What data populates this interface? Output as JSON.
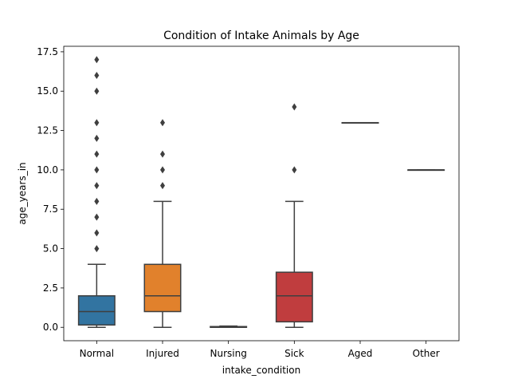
{
  "chart_data": {
    "type": "box",
    "title": "Condition of Intake Animals by Age",
    "xlabel": "intake_condition",
    "ylabel": "age_years_in",
    "ylim": [
      -0.85,
      17.85
    ],
    "yticks": [
      0.0,
      2.5,
      5.0,
      7.5,
      10.0,
      12.5,
      15.0,
      17.5
    ],
    "ytick_labels": [
      "0.0",
      "2.5",
      "5.0",
      "7.5",
      "10.0",
      "12.5",
      "15.0",
      "17.5"
    ],
    "grid": false,
    "categories": [
      "Normal",
      "Injured",
      "Nursing",
      "Sick",
      "Aged",
      "Other"
    ],
    "boxes": [
      {
        "category": "Normal",
        "color": "#3274a1",
        "whisker_low": 0.0,
        "q1": 0.15,
        "median": 1.0,
        "q3": 2.0,
        "whisker_high": 4.0,
        "outliers": [
          5.0,
          6.0,
          7.0,
          8.0,
          9.0,
          10.0,
          11.0,
          12.0,
          13.0,
          15.0,
          16.0,
          17.0
        ]
      },
      {
        "category": "Injured",
        "color": "#e1812c",
        "whisker_low": 0.0,
        "q1": 1.0,
        "median": 2.0,
        "q3": 4.0,
        "whisker_high": 8.0,
        "outliers": [
          9.0,
          10.0,
          11.0,
          13.0
        ]
      },
      {
        "category": "Nursing",
        "color": "#3a923a",
        "whisker_low": 0.0,
        "q1": 0.0,
        "median": 0.0,
        "q3": 0.05,
        "whisker_high": 0.08,
        "outliers": []
      },
      {
        "category": "Sick",
        "color": "#c03d3e",
        "whisker_low": 0.0,
        "q1": 0.35,
        "median": 2.0,
        "q3": 3.5,
        "whisker_high": 8.0,
        "outliers": [
          10.0,
          14.0
        ]
      },
      {
        "category": "Aged",
        "color": "#9372b2",
        "whisker_low": 13.0,
        "q1": 13.0,
        "median": 13.0,
        "q3": 13.0,
        "whisker_high": 13.0,
        "outliers": []
      },
      {
        "category": "Other",
        "color": "#845b53",
        "whisker_low": 10.0,
        "q1": 10.0,
        "median": 10.0,
        "q3": 10.0,
        "whisker_high": 10.0,
        "outliers": []
      }
    ]
  }
}
